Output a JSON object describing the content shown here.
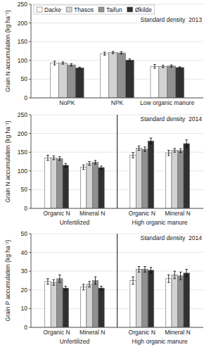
{
  "chart_data": [
    {
      "type": "bar",
      "title": "Standard density  2013",
      "ylabel": "Grain N accumulation (kg ha⁻¹)",
      "categories": [
        "NoPK",
        "NPK",
        "Low organic manure"
      ],
      "series": [
        {
          "name": "Dacke",
          "color": "white",
          "values": [
            93,
            118,
            84
          ],
          "errors": [
            5,
            4,
            5
          ]
        },
        {
          "name": "Thasos",
          "color": "#d3d3d3",
          "values": [
            93,
            121,
            84
          ],
          "errors": [
            3,
            3,
            3
          ]
        },
        {
          "name": "Taifun",
          "color": "#909090",
          "values": [
            88,
            120,
            85
          ],
          "errors": [
            3,
            3,
            3
          ]
        },
        {
          "name": "Økilde",
          "color": "#303030",
          "values": [
            80,
            101,
            81
          ],
          "errors": [
            2,
            3,
            2
          ]
        }
      ],
      "ylim": [
        0,
        250
      ],
      "yticks": [
        0,
        50,
        100,
        150,
        200,
        250
      ],
      "legend": "upper left"
    },
    {
      "type": "bar",
      "title": "Standard density  2014",
      "ylabel": "Grain N accumulation (kg ha⁻¹)",
      "categories": [
        "Organic N",
        "Mineral N",
        "Organic N",
        "Mineral N"
      ],
      "annotations": [
        "Unfertilized",
        "High organic manure"
      ],
      "series": [
        {
          "color": "white",
          "values": [
            135,
            110,
            142,
            148
          ],
          "errors": [
            7,
            6,
            7,
            7
          ]
        },
        {
          "color": "#d3d3d3",
          "values": [
            135,
            120,
            161,
            155
          ],
          "errors": [
            5,
            5,
            6,
            5
          ]
        },
        {
          "color": "#909090",
          "values": [
            133,
            123,
            158,
            154
          ],
          "errors": [
            5,
            5,
            6,
            5
          ]
        },
        {
          "color": "#303030",
          "values": [
            115,
            109,
            180,
            173
          ],
          "errors": [
            5,
            4,
            8,
            10
          ]
        }
      ],
      "ylim": [
        0,
        250
      ],
      "yticks": [
        0,
        50,
        100,
        150,
        200,
        250
      ]
    },
    {
      "type": "bar",
      "title": "Standard density  2014",
      "ylabel": "Grain P accumulation (kg ha⁻¹)",
      "categories": [
        "Organic N",
        "Mineral N",
        "Organic N",
        "Mineral N"
      ],
      "annotations": [
        "Unfertilized",
        "High organic manure"
      ],
      "series": [
        {
          "color": "white",
          "values": [
            24.5,
            21.5,
            25,
            26
          ],
          "errors": [
            1.5,
            1.5,
            2,
            2
          ]
        },
        {
          "color": "#d3d3d3",
          "values": [
            24,
            23,
            31,
            28
          ],
          "errors": [
            1.5,
            1.5,
            1.5,
            2
          ]
        },
        {
          "color": "#909090",
          "values": [
            26,
            25,
            31,
            27.5
          ],
          "errors": [
            2,
            2,
            1.5,
            2
          ]
        },
        {
          "color": "#303030",
          "values": [
            21,
            21,
            30.5,
            29
          ],
          "errors": [
            1,
            1,
            1.5,
            2
          ]
        }
      ],
      "ylim": [
        0,
        50
      ],
      "yticks": [
        0,
        10,
        20,
        30,
        40,
        50
      ]
    }
  ]
}
